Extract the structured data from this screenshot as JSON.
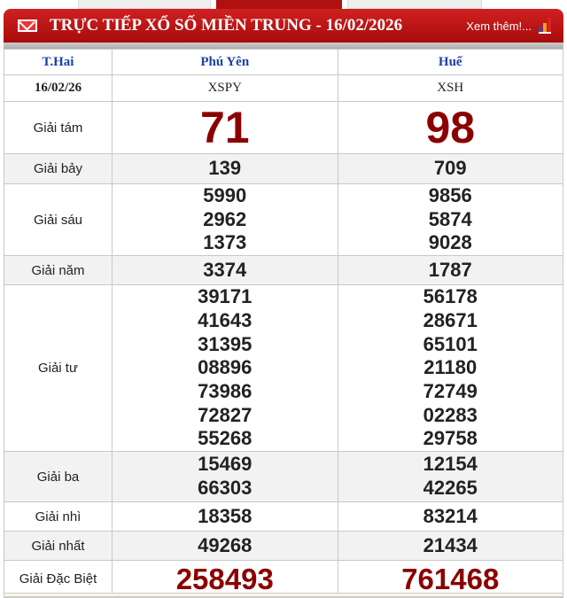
{
  "header": {
    "title": "TRỰC TIẾP XỔ SỐ MIỀN TRUNG - 16/02/2026",
    "more": "Xem thêm!...",
    "icons": [
      "mail-icon",
      "bar-chart-icon"
    ],
    "color": "#c01818"
  },
  "table": {
    "day": "T.Hai",
    "date": "16/02/26",
    "provinces": [
      {
        "name": "Phú Yên",
        "code": "XSPY"
      },
      {
        "name": "Huế",
        "code": "XSH"
      }
    ],
    "prizes": [
      {
        "label": "Giải tám",
        "values": [
          [
            "71"
          ],
          [
            "98"
          ]
        ]
      },
      {
        "label": "Giải bảy",
        "values": [
          [
            "139"
          ],
          [
            "709"
          ]
        ]
      },
      {
        "label": "Giải sáu",
        "values": [
          [
            "5990",
            "2962",
            "1373"
          ],
          [
            "9856",
            "5874",
            "9028"
          ]
        ]
      },
      {
        "label": "Giải năm",
        "values": [
          [
            "3374"
          ],
          [
            "1787"
          ]
        ]
      },
      {
        "label": "Giải tư",
        "values": [
          [
            "39171",
            "41643",
            "31395",
            "08896",
            "73986",
            "72827",
            "55268"
          ],
          [
            "56178",
            "28671",
            "65101",
            "21180",
            "72749",
            "02283",
            "29758"
          ]
        ]
      },
      {
        "label": "Giải ba",
        "values": [
          [
            "15469",
            "66303"
          ],
          [
            "12154",
            "42265"
          ]
        ]
      },
      {
        "label": "Giải nhì",
        "values": [
          [
            "18358"
          ],
          [
            "83214"
          ]
        ]
      },
      {
        "label": "Giải nhất",
        "values": [
          [
            "49268"
          ],
          [
            "21434"
          ]
        ]
      },
      {
        "label": "Giải Đặc Biệt",
        "values": [
          [
            "258493"
          ],
          [
            "761468"
          ]
        ]
      }
    ]
  }
}
